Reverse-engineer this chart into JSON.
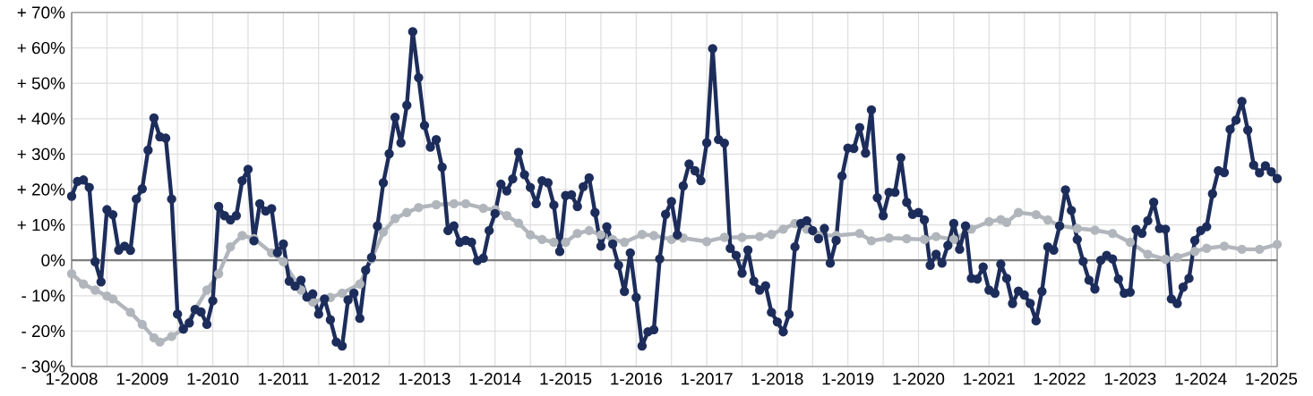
{
  "chart_data": {
    "type": "line",
    "xlim": [
      "2008-01",
      "2025-02"
    ],
    "ylim": [
      -30,
      70
    ],
    "xticks": [
      {
        "value": "2008-01",
        "label": "1-2008"
      },
      {
        "value": "2008-07",
        "label": null
      },
      {
        "value": "2009-01",
        "label": "1-2009"
      },
      {
        "value": "2009-07",
        "label": null
      },
      {
        "value": "2010-01",
        "label": "1-2010"
      },
      {
        "value": "2010-07",
        "label": null
      },
      {
        "value": "2011-01",
        "label": "1-2011"
      },
      {
        "value": "2011-07",
        "label": null
      },
      {
        "value": "2012-01",
        "label": "1-2012"
      },
      {
        "value": "2012-07",
        "label": null
      },
      {
        "value": "2013-01",
        "label": "1-2013"
      },
      {
        "value": "2013-07",
        "label": null
      },
      {
        "value": "2014-01",
        "label": "1-2014"
      },
      {
        "value": "2014-07",
        "label": null
      },
      {
        "value": "2015-01",
        "label": "1-2015"
      },
      {
        "value": "2015-07",
        "label": null
      },
      {
        "value": "2016-01",
        "label": "1-2016"
      },
      {
        "value": "2016-07",
        "label": null
      },
      {
        "value": "2017-01",
        "label": "1-2017"
      },
      {
        "value": "2017-07",
        "label": null
      },
      {
        "value": "2018-01",
        "label": "1-2018"
      },
      {
        "value": "2018-07",
        "label": null
      },
      {
        "value": "2019-01",
        "label": "1-2019"
      },
      {
        "value": "2019-07",
        "label": null
      },
      {
        "value": "2020-01",
        "label": "1-2020"
      },
      {
        "value": "2020-07",
        "label": null
      },
      {
        "value": "2021-01",
        "label": "1-2021"
      },
      {
        "value": "2021-07",
        "label": null
      },
      {
        "value": "2022-01",
        "label": "1-2022"
      },
      {
        "value": "2022-07",
        "label": null
      },
      {
        "value": "2023-01",
        "label": "1-2023"
      },
      {
        "value": "2023-07",
        "label": null
      },
      {
        "value": "2024-01",
        "label": "1-2024"
      },
      {
        "value": "2024-07",
        "label": null
      },
      {
        "value": "2025-01",
        "label": "1-2025"
      }
    ],
    "yticks": [
      {
        "value": -30,
        "label": "- 30%"
      },
      {
        "value": -20,
        "label": "- 20%"
      },
      {
        "value": -10,
        "label": "- 10%"
      },
      {
        "value": 0,
        "label": "0%"
      },
      {
        "value": 10,
        "label": "+ 10%"
      },
      {
        "value": 20,
        "label": "+ 20%"
      },
      {
        "value": 30,
        "label": "+ 30%"
      },
      {
        "value": 40,
        "label": "+ 40%"
      },
      {
        "value": 50,
        "label": "+ 50%"
      },
      {
        "value": 60,
        "label": "+ 60%"
      },
      {
        "value": 70,
        "label": "+ 70%"
      }
    ],
    "grid": true,
    "marker": "circle",
    "line_style": "solid",
    "ref_lines": [
      {
        "axis": "y",
        "value": 0,
        "color": "#808080"
      }
    ],
    "series": [
      {
        "color": "#b1b6bc",
        "x": [
          "2008-01",
          "2008-03",
          "2008-05",
          "2008-07",
          "2008-08",
          "2008-11",
          "2009-01",
          "2009-03",
          "2009-04",
          "2009-06",
          "2009-08",
          "2009-10",
          "2009-12",
          "2010-02",
          "2010-04",
          "2010-06",
          "2010-08",
          "2010-11",
          "2011-01",
          "2011-04",
          "2011-06",
          "2011-09",
          "2011-11",
          "2012-02",
          "2012-04",
          "2012-06",
          "2012-08",
          "2012-10",
          "2012-12",
          "2013-03",
          "2013-06",
          "2013-08",
          "2013-11",
          "2014-01",
          "2014-03",
          "2014-05",
          "2014-07",
          "2014-09",
          "2014-11",
          "2015-01",
          "2015-03",
          "2015-05",
          "2015-07",
          "2015-09",
          "2015-11",
          "2016-02",
          "2016-04",
          "2016-07",
          "2016-09",
          "2017-01",
          "2017-04",
          "2017-07",
          "2017-10",
          "2017-12",
          "2018-02",
          "2018-04",
          "2018-06",
          "2018-08",
          "2018-11",
          "2019-03",
          "2019-05",
          "2019-08",
          "2019-11",
          "2020-02",
          "2020-04",
          "2020-07",
          "2020-10",
          "2021-01",
          "2021-03",
          "2021-04",
          "2021-06",
          "2021-09",
          "2021-11",
          "2022-01",
          "2022-04",
          "2022-07",
          "2022-10",
          "2023-01",
          "2023-04",
          "2023-07",
          "2023-09",
          "2023-12",
          "2024-02",
          "2024-05",
          "2024-08",
          "2024-11",
          "2025-02"
        ],
        "values": [
          -3.8,
          -6.7,
          -8.4,
          -10.1,
          -10.9,
          -14.7,
          -18.1,
          -21.9,
          -23.1,
          -21.5,
          -19.4,
          -13.9,
          -8.4,
          -3.8,
          3.8,
          7.0,
          6.1,
          2.1,
          -0.4,
          -8.4,
          -11.8,
          -10.5,
          -9.3,
          -6.7,
          0.4,
          8.0,
          11.8,
          13.5,
          14.9,
          15.7,
          16.0,
          16.0,
          14.7,
          14.3,
          12.6,
          10.5,
          7.2,
          5.9,
          5.1,
          5.1,
          7.6,
          8.4,
          7.2,
          5.9,
          5.1,
          7.3,
          7.0,
          5.9,
          6.3,
          5.3,
          6.5,
          6.5,
          6.7,
          7.3,
          8.8,
          10.4,
          8.8,
          7.1,
          7.0,
          7.6,
          5.5,
          6.3,
          6.1,
          5.9,
          6.7,
          5.9,
          8.8,
          10.9,
          11.5,
          10.7,
          13.5,
          12.9,
          11.4,
          9.8,
          9.0,
          8.5,
          7.6,
          5.1,
          1.7,
          0.3,
          0.8,
          2.5,
          3.4,
          4.0,
          3.1,
          3.1,
          4.5
        ]
      },
      {
        "color": "#1d2d5b",
        "x": [
          "2008-01",
          "2008-02",
          "2008-03",
          "2008-04",
          "2008-05",
          "2008-06",
          "2008-07",
          "2008-08",
          "2008-09",
          "2008-10",
          "2008-11",
          "2008-12",
          "2009-01",
          "2009-02",
          "2009-03",
          "2009-04",
          "2009-05",
          "2009-06",
          "2009-07",
          "2009-08",
          "2009-09",
          "2009-10",
          "2009-11",
          "2009-12",
          "2010-01",
          "2010-02",
          "2010-03",
          "2010-04",
          "2010-05",
          "2010-06",
          "2010-07",
          "2010-08",
          "2010-09",
          "2010-10",
          "2010-11",
          "2010-12",
          "2011-01",
          "2011-02",
          "2011-03",
          "2011-04",
          "2011-05",
          "2011-06",
          "2011-07",
          "2011-08",
          "2011-09",
          "2011-10",
          "2011-11",
          "2011-12",
          "2012-01",
          "2012-02",
          "2012-03",
          "2012-04",
          "2012-05",
          "2012-06",
          "2012-07",
          "2012-08",
          "2012-09",
          "2012-10",
          "2012-11",
          "2012-12",
          "2013-01",
          "2013-02",
          "2013-03",
          "2013-04",
          "2013-05",
          "2013-06",
          "2013-07",
          "2013-08",
          "2013-09",
          "2013-10",
          "2013-11",
          "2013-12",
          "2014-01",
          "2014-02",
          "2014-03",
          "2014-04",
          "2014-05",
          "2014-06",
          "2014-07",
          "2014-08",
          "2014-09",
          "2014-10",
          "2014-11",
          "2014-12",
          "2015-01",
          "2015-02",
          "2015-03",
          "2015-04",
          "2015-05",
          "2015-06",
          "2015-07",
          "2015-08",
          "2015-09",
          "2015-10",
          "2015-11",
          "2015-12",
          "2016-01",
          "2016-02",
          "2016-03",
          "2016-04",
          "2016-05",
          "2016-06",
          "2016-07",
          "2016-08",
          "2016-09",
          "2016-10",
          "2016-11",
          "2016-12",
          "2017-01",
          "2017-02",
          "2017-03",
          "2017-04",
          "2017-05",
          "2017-06",
          "2017-07",
          "2017-08",
          "2017-09",
          "2017-10",
          "2017-11",
          "2017-12",
          "2018-01",
          "2018-02",
          "2018-03",
          "2018-04",
          "2018-05",
          "2018-06",
          "2018-07",
          "2018-08",
          "2018-09",
          "2018-10",
          "2018-11",
          "2018-12",
          "2019-01",
          "2019-02",
          "2019-03",
          "2019-04",
          "2019-05",
          "2019-06",
          "2019-07",
          "2019-08",
          "2019-09",
          "2019-10",
          "2019-11",
          "2019-12",
          "2020-01",
          "2020-02",
          "2020-03",
          "2020-04",
          "2020-05",
          "2020-06",
          "2020-07",
          "2020-08",
          "2020-09",
          "2020-10",
          "2020-11",
          "2020-12",
          "2021-01",
          "2021-02",
          "2021-03",
          "2021-04",
          "2021-05",
          "2021-06",
          "2021-07",
          "2021-08",
          "2021-09",
          "2021-10",
          "2021-11",
          "2021-12",
          "2022-01",
          "2022-02",
          "2022-03",
          "2022-04",
          "2022-05",
          "2022-06",
          "2022-07",
          "2022-08",
          "2022-09",
          "2022-10",
          "2022-11",
          "2022-12",
          "2023-01",
          "2023-02",
          "2023-03",
          "2023-04",
          "2023-05",
          "2023-06",
          "2023-07",
          "2023-08",
          "2023-09",
          "2023-10",
          "2023-11",
          "2023-12",
          "2024-01",
          "2024-02",
          "2024-03",
          "2024-04",
          "2024-05",
          "2024-06",
          "2024-07",
          "2024-08",
          "2024-09",
          "2024-10",
          "2024-11",
          "2024-12",
          "2025-01",
          "2025-02"
        ],
        "values": [
          18.1,
          22.3,
          22.7,
          20.6,
          -0.4,
          -6.1,
          14.3,
          12.9,
          2.9,
          4.0,
          2.8,
          17.3,
          20.2,
          31.1,
          40.2,
          34.9,
          34.5,
          17.3,
          -15.2,
          -19.4,
          -17.7,
          -13.9,
          -14.6,
          -18.1,
          -11.4,
          15.2,
          12.6,
          11.4,
          12.6,
          22.5,
          25.7,
          5.5,
          16.0,
          13.9,
          14.6,
          2.2,
          4.6,
          -5.9,
          -7.3,
          -5.6,
          -10.4,
          -9.5,
          -15.2,
          -10.9,
          -16.8,
          -23.1,
          -24.2,
          -11.2,
          -9.3,
          -16.4,
          -2.8,
          0.8,
          9.7,
          21.9,
          30.1,
          40.4,
          33.2,
          43.8,
          64.6,
          51.6,
          38.1,
          32.0,
          34.1,
          26.3,
          8.4,
          9.7,
          5.1,
          5.6,
          5.1,
          -0.1,
          0.6,
          8.4,
          13.2,
          21.5,
          19.6,
          23.0,
          30.5,
          24.2,
          20.6,
          16.0,
          22.5,
          21.9,
          15.6,
          2.5,
          18.3,
          18.5,
          15.2,
          20.8,
          23.3,
          13.5,
          4.0,
          9.5,
          4.6,
          -1.4,
          -8.8,
          2.1,
          -10.5,
          -24.2,
          -20.2,
          -19.6,
          0.4,
          13.0,
          16.6,
          7.2,
          21.0,
          27.2,
          25.3,
          22.5,
          33.2,
          59.8,
          34.1,
          33.1,
          3.4,
          1.4,
          -3.6,
          2.9,
          -5.9,
          -8.4,
          -7.2,
          -14.7,
          -17.4,
          -20.2,
          -15.2,
          3.8,
          10.4,
          11.2,
          8.4,
          6.1,
          9.0,
          -0.8,
          5.6,
          23.8,
          31.7,
          31.6,
          37.5,
          30.3,
          42.5,
          17.7,
          12.6,
          19.2,
          19.2,
          29.0,
          16.4,
          13.0,
          13.5,
          11.4,
          -1.4,
          1.7,
          -0.8,
          4.2,
          10.4,
          3.1,
          9.7,
          -5.1,
          -5.3,
          -1.9,
          -8.4,
          -9.3,
          -1.1,
          -5.1,
          -12.2,
          -8.7,
          -9.8,
          -12.2,
          -17.1,
          -8.8,
          3.8,
          2.9,
          9.7,
          19.9,
          14.1,
          5.9,
          -0.3,
          -5.6,
          -8.1,
          0.0,
          1.4,
          0.4,
          -5.3,
          -9.3,
          -9.0,
          8.7,
          7.6,
          11.2,
          16.4,
          9.0,
          8.8,
          -10.9,
          -12.2,
          -7.6,
          -5.1,
          5.6,
          8.4,
          9.5,
          18.8,
          25.3,
          24.8,
          37.0,
          39.6,
          44.9,
          36.8,
          26.9,
          24.7,
          26.7,
          25.0,
          23.1
        ]
      }
    ]
  }
}
